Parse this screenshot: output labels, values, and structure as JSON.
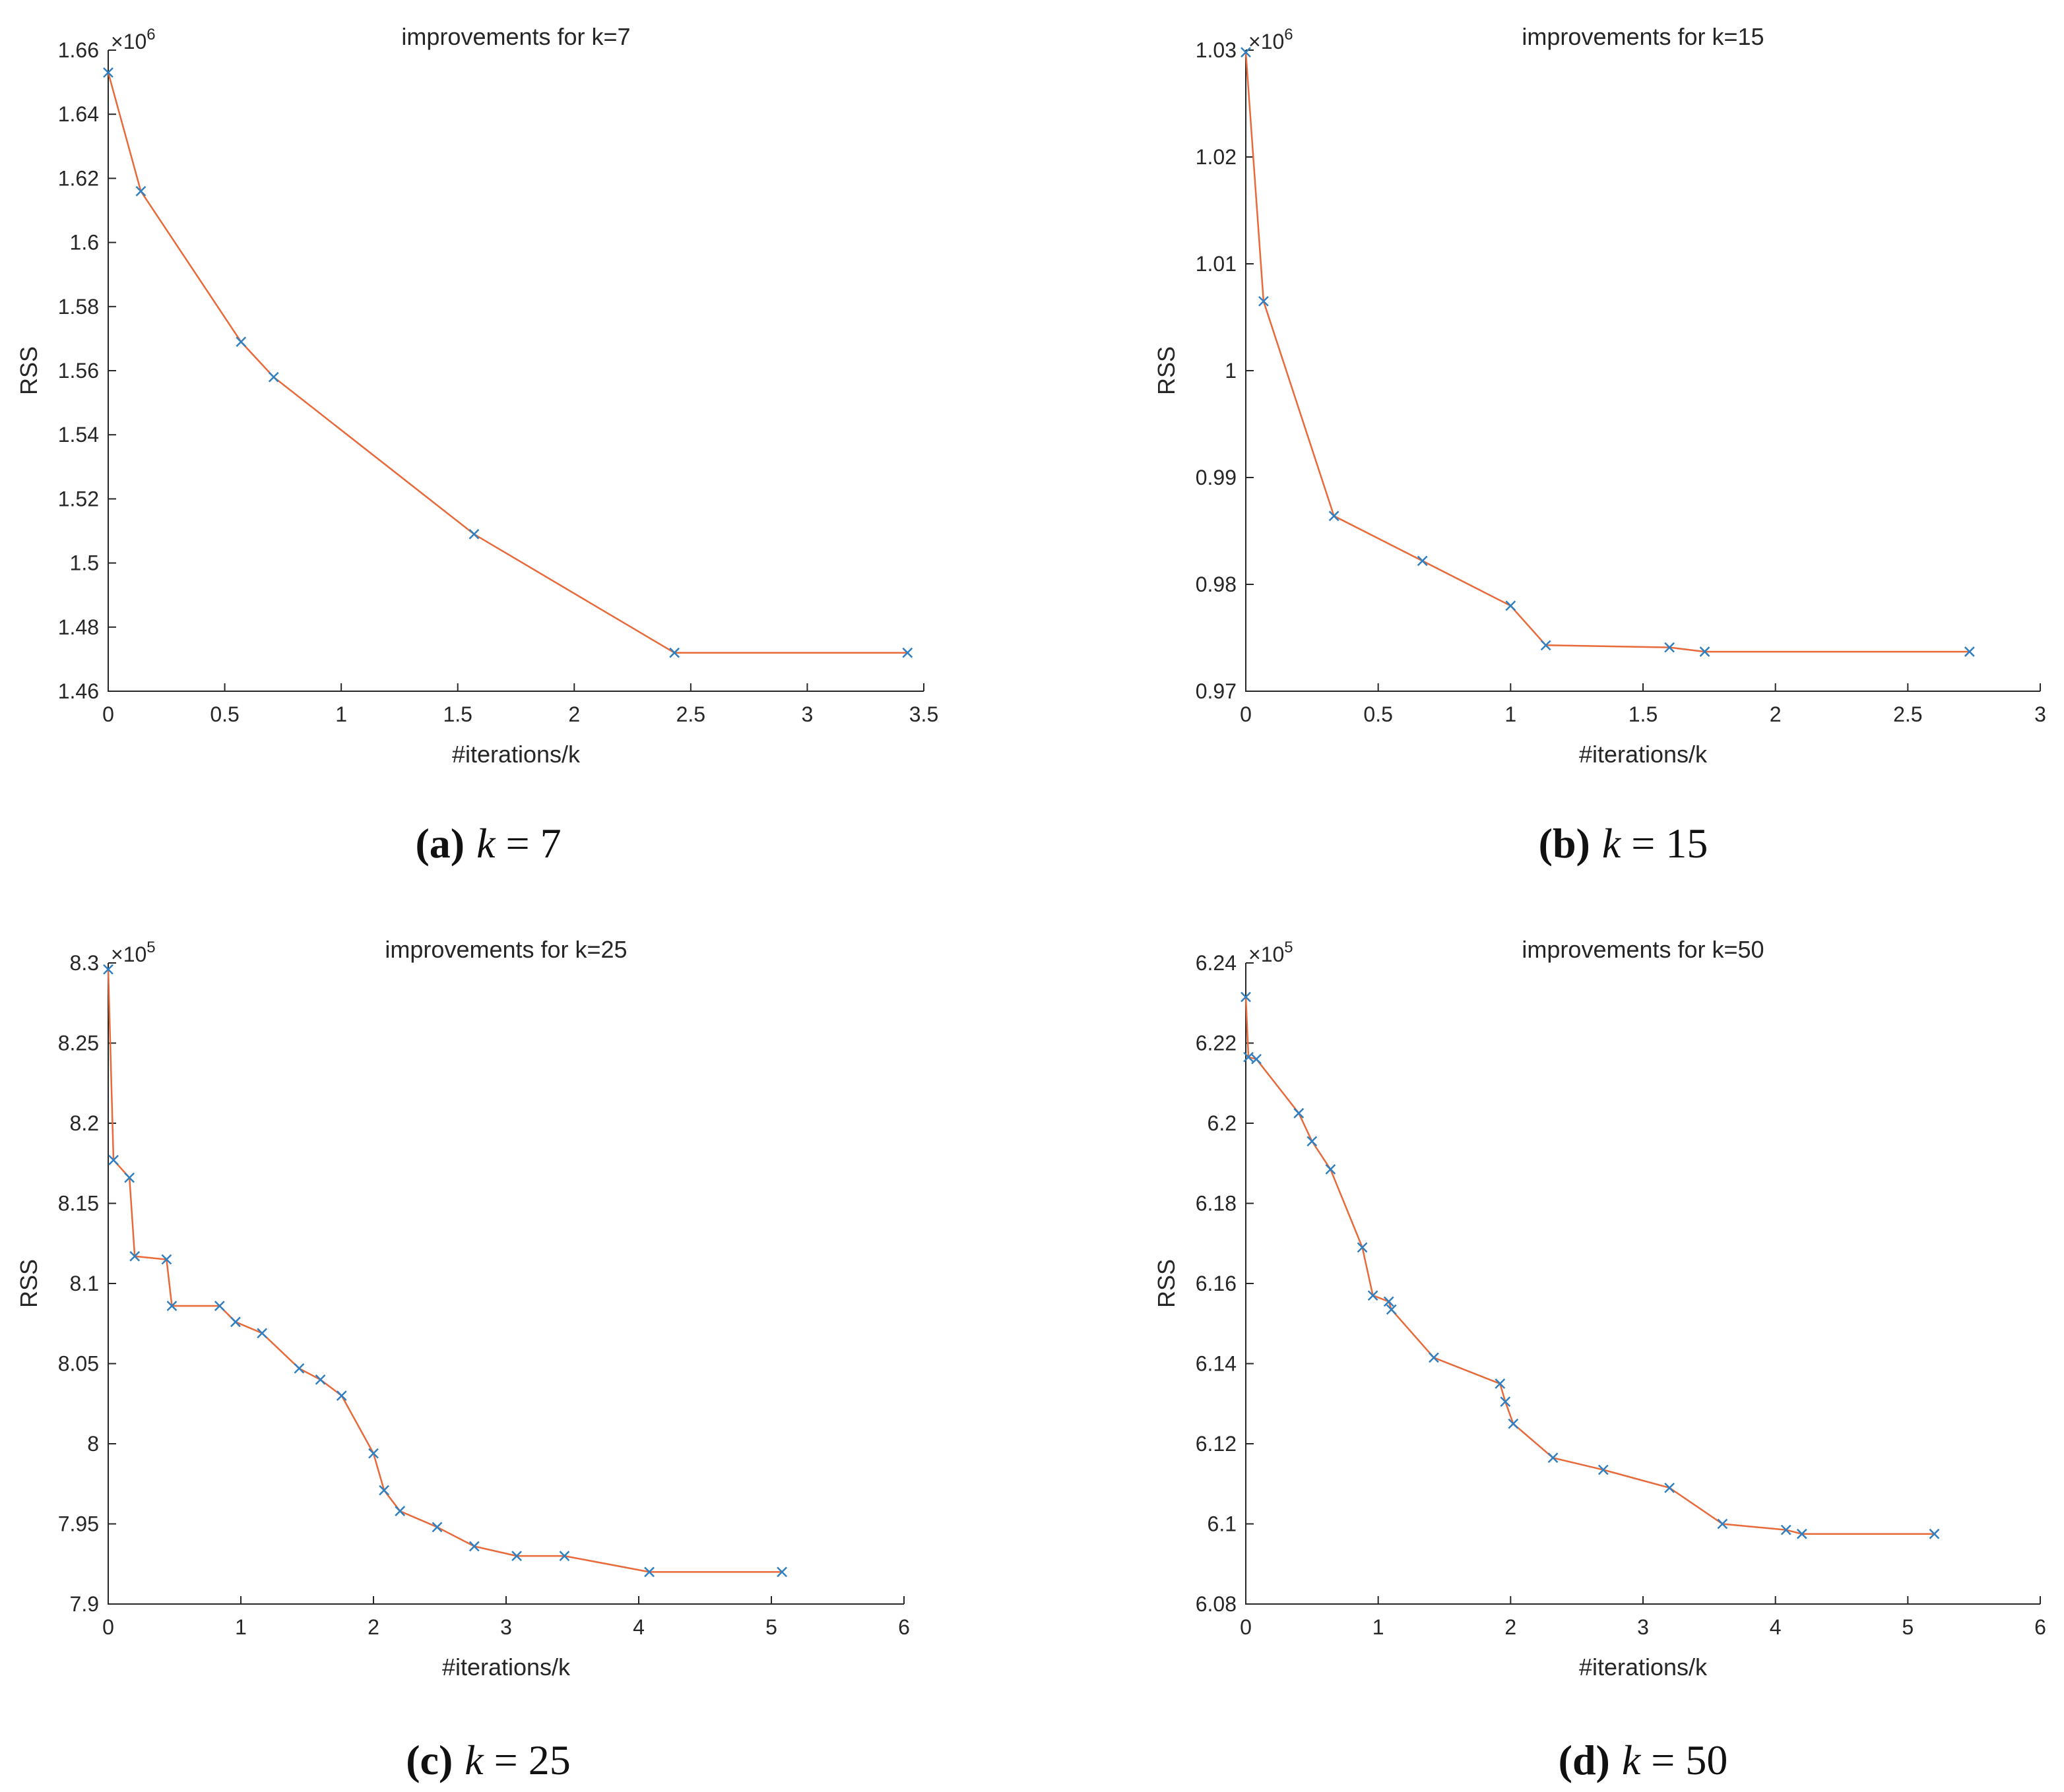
{
  "style": {
    "line_color": "#e8693a",
    "marker_color": "#2f7fc1",
    "axis_color": "#262626"
  },
  "chart_data": [
    {
      "type": "line",
      "title": "improvements for k=7",
      "xlabel": "#iterations/k",
      "ylabel": "RSS",
      "exponent_base": "×10",
      "exponent_power": "6",
      "xlim": [
        0,
        3.5
      ],
      "ylim": [
        1.46,
        1.66
      ],
      "xticks": [
        0,
        0.5,
        1,
        1.5,
        2,
        2.5,
        3,
        3.5
      ],
      "xtick_labels": [
        "0",
        "0.5",
        "1",
        "1.5",
        "2",
        "2.5",
        "3",
        "3.5"
      ],
      "yticks": [
        1.46,
        1.48,
        1.5,
        1.52,
        1.54,
        1.56,
        1.58,
        1.6,
        1.62,
        1.64,
        1.66
      ],
      "ytick_labels": [
        "1.46",
        "1.48",
        "1.5",
        "1.52",
        "1.54",
        "1.56",
        "1.58",
        "1.6",
        "1.62",
        "1.64",
        "1.66"
      ],
      "x": [
        0,
        0.14,
        0.57,
        0.71,
        1.57,
        2.43,
        3.43
      ],
      "y": [
        1.653,
        1.616,
        1.569,
        1.558,
        1.509,
        1.472,
        1.472
      ],
      "caption_label": "(a)",
      "caption_math_var": "k",
      "caption_math_rest": " = 7"
    },
    {
      "type": "line",
      "title": "improvements for k=15",
      "xlabel": "#iterations/k",
      "ylabel": "RSS",
      "exponent_base": "×10",
      "exponent_power": "6",
      "xlim": [
        0,
        3
      ],
      "ylim": [
        0.97,
        1.03
      ],
      "xticks": [
        0,
        0.5,
        1,
        1.5,
        2,
        2.5,
        3
      ],
      "xtick_labels": [
        "0",
        "0.5",
        "1",
        "1.5",
        "2",
        "2.5",
        "3"
      ],
      "yticks": [
        0.97,
        0.98,
        0.99,
        1.0,
        1.01,
        1.02,
        1.03
      ],
      "ytick_labels": [
        "0.97",
        "0.98",
        "0.99",
        "1",
        "1.01",
        "1.02",
        "1.03"
      ],
      "x": [
        0,
        0.067,
        0.333,
        0.667,
        1.0,
        1.133,
        1.6,
        1.733,
        2.733
      ],
      "y": [
        1.0298,
        1.0065,
        0.9864,
        0.9822,
        0.978,
        0.9743,
        0.9741,
        0.9737,
        0.9737
      ],
      "caption_label": "(b)",
      "caption_math_var": "k",
      "caption_math_rest": " = 15"
    },
    {
      "type": "line",
      "title": "improvements for k=25",
      "xlabel": "#iterations/k",
      "ylabel": "RSS",
      "exponent_base": "×10",
      "exponent_power": "5",
      "xlim": [
        0,
        6
      ],
      "ylim": [
        7.9,
        8.3
      ],
      "xticks": [
        0,
        1,
        2,
        3,
        4,
        5,
        6
      ],
      "xtick_labels": [
        "0",
        "1",
        "2",
        "3",
        "4",
        "5",
        "6"
      ],
      "yticks": [
        7.9,
        7.95,
        8.0,
        8.05,
        8.1,
        8.15,
        8.2,
        8.25,
        8.3
      ],
      "ytick_labels": [
        "7.9",
        "7.95",
        "8",
        "8.05",
        "8.1",
        "8.15",
        "8.2",
        "8.25",
        "8.3"
      ],
      "x": [
        0,
        0.04,
        0.16,
        0.2,
        0.44,
        0.48,
        0.84,
        0.96,
        1.16,
        1.44,
        1.6,
        1.76,
        2.0,
        2.08,
        2.2,
        2.48,
        2.76,
        3.08,
        3.44,
        4.08,
        5.08
      ],
      "y": [
        8.296,
        8.177,
        8.166,
        8.117,
        8.115,
        8.086,
        8.086,
        8.076,
        8.069,
        8.047,
        8.04,
        8.03,
        7.994,
        7.971,
        7.958,
        7.948,
        7.936,
        7.93,
        7.93,
        7.92,
        7.92
      ],
      "caption_label": "(c)",
      "caption_math_var": "k",
      "caption_math_rest": " = 25"
    },
    {
      "type": "line",
      "title": "improvements for k=50",
      "xlabel": "#iterations/k",
      "ylabel": "RSS",
      "exponent_base": "×10",
      "exponent_power": "5",
      "xlim": [
        0,
        6
      ],
      "ylim": [
        6.08,
        6.24
      ],
      "xticks": [
        0,
        1,
        2,
        3,
        4,
        5,
        6
      ],
      "xtick_labels": [
        "0",
        "1",
        "2",
        "3",
        "4",
        "5",
        "6"
      ],
      "yticks": [
        6.08,
        6.1,
        6.12,
        6.14,
        6.16,
        6.18,
        6.2,
        6.22,
        6.24
      ],
      "ytick_labels": [
        "6.08",
        "6.1",
        "6.12",
        "6.14",
        "6.16",
        "6.18",
        "6.2",
        "6.22",
        "6.24"
      ],
      "x": [
        0,
        0.02,
        0.08,
        0.4,
        0.5,
        0.64,
        0.88,
        0.96,
        1.08,
        1.1,
        1.42,
        1.92,
        1.96,
        2.02,
        2.32,
        2.7,
        3.2,
        3.6,
        4.08,
        4.2,
        5.2
      ],
      "y": [
        6.2315,
        6.2165,
        6.216,
        6.2025,
        6.1955,
        6.1885,
        6.169,
        6.157,
        6.1555,
        6.1535,
        6.1415,
        6.135,
        6.1305,
        6.125,
        6.1165,
        6.1135,
        6.109,
        6.1,
        6.0985,
        6.0975,
        6.0975
      ],
      "caption_label": "(d)",
      "caption_math_var": "k",
      "caption_math_rest": " = 50"
    }
  ]
}
